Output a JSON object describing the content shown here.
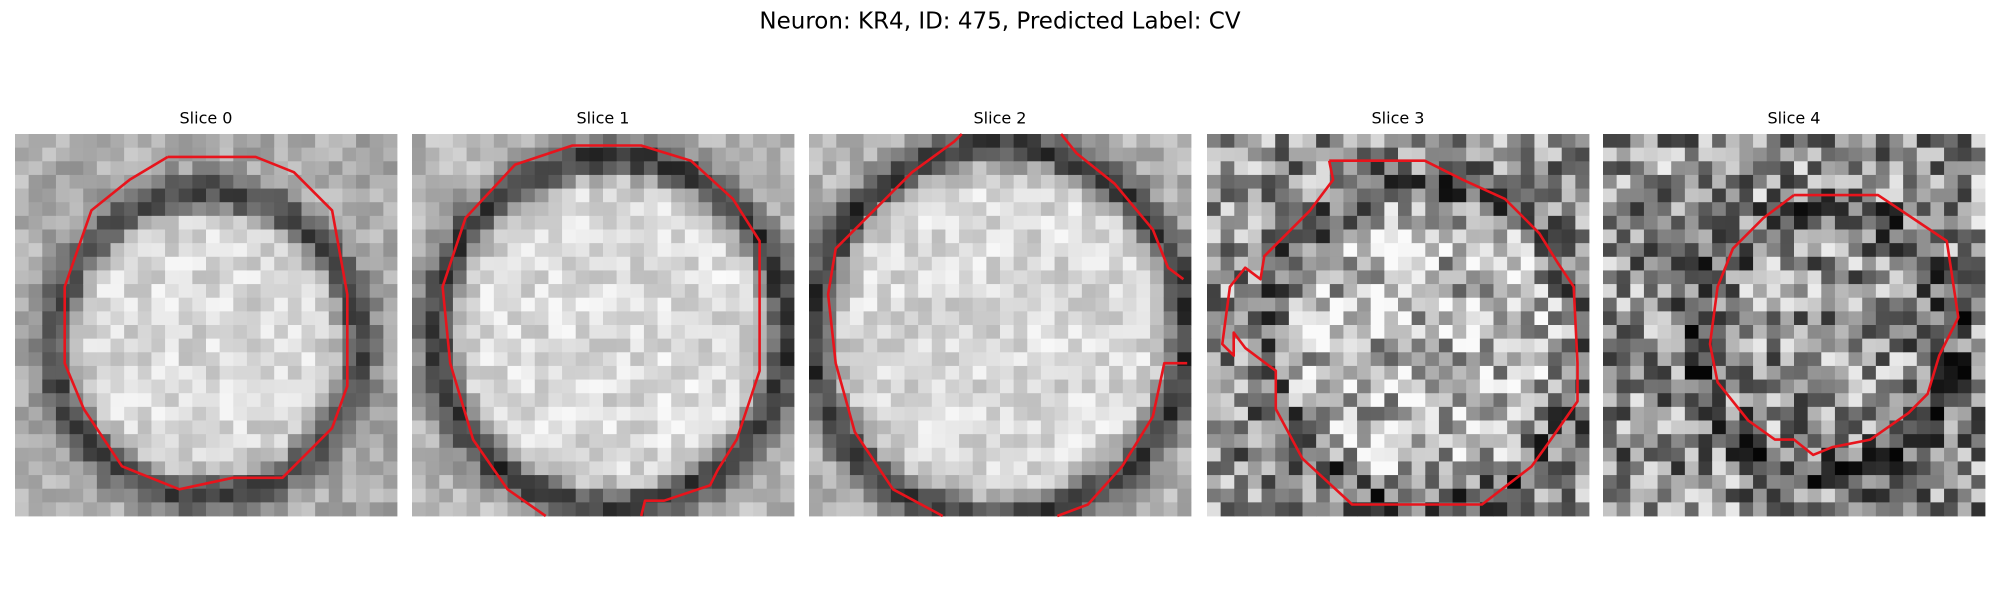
{
  "figure": {
    "title": "Neuron: KR4, ID: 475, Predicted Label: CV",
    "panels": [
      {
        "title": "Slice 0"
      },
      {
        "title": "Slice 1"
      },
      {
        "title": "Slice 2"
      },
      {
        "title": "Slice 3"
      },
      {
        "title": "Slice 4"
      }
    ]
  }
}
